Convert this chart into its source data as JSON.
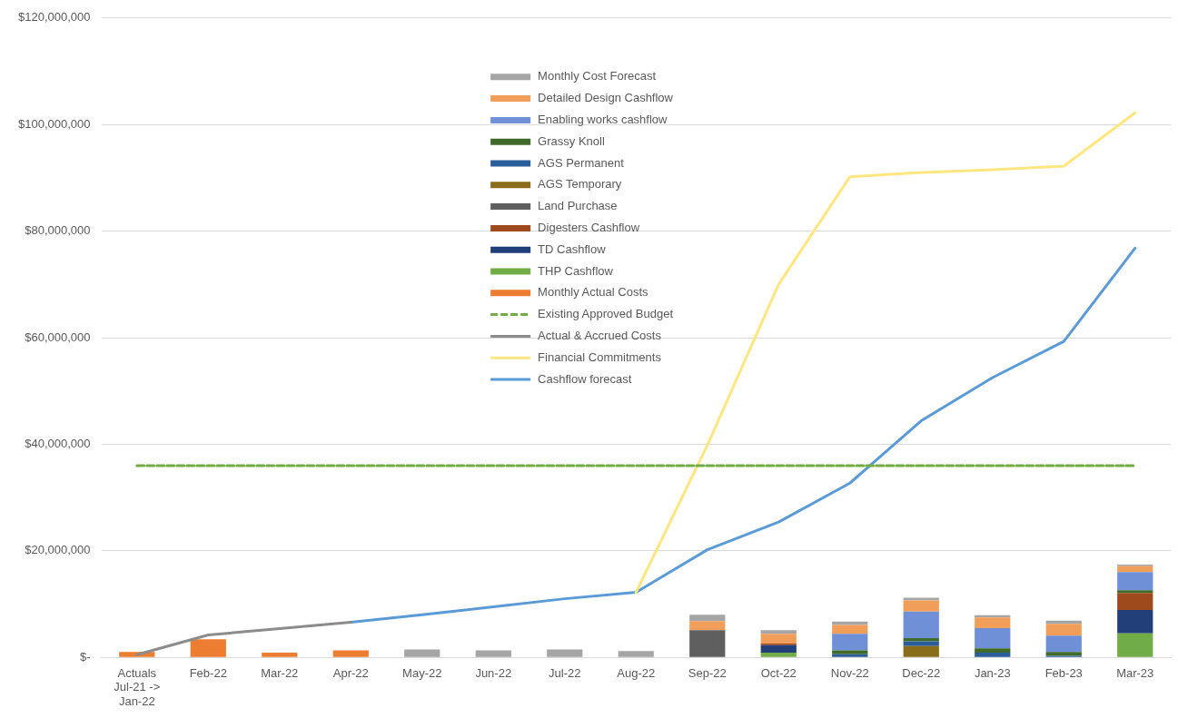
{
  "chart_data": {
    "type": "bar",
    "stacked": true,
    "legend": "top",
    "grid": "y",
    "marker": "none",
    "categories": [
      "Actuals Jul-21 -> Jan-22",
      "Feb-22",
      "Mar-22",
      "Apr-22",
      "May-22",
      "Jun-22",
      "Jul-22",
      "Aug-22",
      "Sep-22",
      "Oct-22",
      "Nov-22",
      "Dec-22",
      "Jan-23",
      "Feb-23",
      "Mar-23"
    ],
    "ylim": [
      0,
      120000000
    ],
    "yticks": [
      {
        "value": 0,
        "label": "$-"
      },
      {
        "value": 20000000,
        "label": "$20,000,000"
      },
      {
        "value": 40000000,
        "label": "$40,000,000"
      },
      {
        "value": 60000000,
        "label": "$60,000,000"
      },
      {
        "value": 80000000,
        "label": "$80,000,000"
      },
      {
        "value": 100000000,
        "label": "$100,000,000"
      },
      {
        "value": 120000000,
        "label": "$120,000,000"
      }
    ],
    "series": [
      {
        "name": "Monthly Actual Costs",
        "color": "#ed7d31",
        "values": [
          1000000,
          3400000,
          900000,
          1300000,
          null,
          null,
          null,
          null,
          null,
          null,
          null,
          null,
          null,
          null,
          null
        ]
      },
      {
        "name": "THP Cashflow",
        "color": "#70ad47",
        "values": [
          null,
          null,
          null,
          null,
          null,
          null,
          null,
          null,
          null,
          900000,
          null,
          null,
          null,
          null,
          4500000
        ]
      },
      {
        "name": "TD Cashflow",
        "color": "#233f7a",
        "values": [
          null,
          null,
          null,
          null,
          null,
          null,
          null,
          null,
          null,
          1400000,
          null,
          null,
          null,
          null,
          4400000
        ]
      },
      {
        "name": "Digesters Cashflow",
        "color": "#9e4a1c",
        "values": [
          null,
          null,
          null,
          null,
          null,
          null,
          null,
          null,
          null,
          300000,
          null,
          null,
          null,
          null,
          3200000
        ]
      },
      {
        "name": "Land Purchase",
        "color": "#5f5f5f",
        "values": [
          null,
          null,
          null,
          null,
          null,
          null,
          null,
          null,
          5100000,
          null,
          null,
          null,
          null,
          null,
          null
        ]
      },
      {
        "name": "AGS Temporary",
        "color": "#8a6d1a",
        "values": [
          null,
          null,
          null,
          null,
          null,
          null,
          null,
          null,
          null,
          null,
          null,
          2100000,
          null,
          null,
          null
        ]
      },
      {
        "name": "AGS Permanent",
        "color": "#2a5e9a",
        "values": [
          null,
          null,
          null,
          null,
          null,
          null,
          null,
          null,
          null,
          null,
          600000,
          900000,
          900000,
          300000,
          null
        ]
      },
      {
        "name": "Grassy Knoll",
        "color": "#3f6a2a",
        "values": [
          null,
          null,
          null,
          null,
          null,
          null,
          null,
          null,
          null,
          null,
          700000,
          600000,
          800000,
          700000,
          500000
        ]
      },
      {
        "name": "Enabling works cashflow",
        "color": "#6f8fd6",
        "values": [
          null,
          null,
          null,
          null,
          null,
          null,
          null,
          null,
          null,
          null,
          3100000,
          5000000,
          3800000,
          3100000,
          3400000
        ]
      },
      {
        "name": "Detailed Design Cashflow",
        "color": "#f19e5b",
        "values": [
          null,
          null,
          null,
          null,
          null,
          null,
          null,
          null,
          1700000,
          1800000,
          1700000,
          2100000,
          2000000,
          2200000,
          1100000
        ]
      },
      {
        "name": "Monthly Cost Forecast",
        "color": "#a5a5a5",
        "values": [
          null,
          null,
          null,
          null,
          1500000,
          1300000,
          1500000,
          1200000,
          1200000,
          700000,
          600000,
          500000,
          400000,
          600000,
          300000
        ]
      },
      {
        "name": "Existing Approved Budget",
        "type": "line",
        "line_style": "dashed",
        "color": "#70ad47",
        "values": [
          36000000,
          36000000,
          36000000,
          36000000,
          36000000,
          36000000,
          36000000,
          36000000,
          36000000,
          36000000,
          36000000,
          36000000,
          36000000,
          36000000,
          36000000
        ]
      },
      {
        "name": "Actual & Accrued Costs",
        "type": "line",
        "color": "#8c8c8c",
        "values": [
          500000,
          4200000,
          5400000,
          6600000,
          null,
          null,
          null,
          null,
          null,
          null,
          null,
          null,
          null,
          null,
          null
        ]
      },
      {
        "name": "Financial Commitments",
        "type": "line",
        "color": "#ffe680",
        "values": [
          null,
          null,
          null,
          null,
          null,
          null,
          null,
          12200000,
          39800000,
          70000000,
          90200000,
          91000000,
          91500000,
          92200000,
          102200000
        ]
      },
      {
        "name": "Cashflow forecast",
        "type": "line",
        "color": "#5b9bd5",
        "values": [
          null,
          null,
          null,
          6600000,
          8000000,
          9500000,
          11000000,
          12200000,
          20200000,
          25400000,
          32700000,
          44400000,
          52500000,
          59300000,
          76800000
        ]
      }
    ]
  }
}
